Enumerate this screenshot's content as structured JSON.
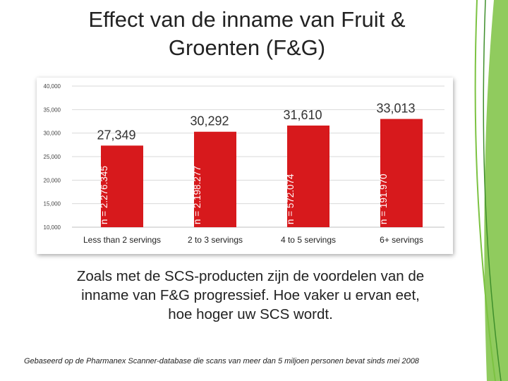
{
  "slide": {
    "title_line1": "Effect van de inname van Fruit &",
    "title_line2": "Groenten (F&G)",
    "caption_line1": "Zoals met de SCS-producten zijn de voordelen van de",
    "caption_line2": "inname van F&G progressief.  Hoe vaker u ervan eet,",
    "caption_line3": "hoe hoger uw SCS wordt.",
    "footnote": "Gebaseerd op de Pharmanex Scanner-database die scans van meer dan 5 miljoen personen bevat sinds mei 2008"
  },
  "colors": {
    "bar": "#d7191c",
    "grid": "#d9d9d9",
    "accent_green": "#7cc242",
    "accent_green_dark": "#3f8f2c"
  },
  "chart_data": {
    "type": "bar",
    "categories": [
      "Less than 2 servings",
      "2 to 3 servings",
      "4 to 5 servings",
      "6+ servings"
    ],
    "values": [
      27349,
      30292,
      31610,
      33013
    ],
    "value_labels": [
      "27,349",
      "30,292",
      "31,610",
      "33,013"
    ],
    "bar_annotations": [
      "n = 2.276.345",
      "n = 2.198.277",
      "n = 572.074",
      "n = 191.970"
    ],
    "ylim": [
      10000,
      40000
    ],
    "yticks": [
      10000,
      15000,
      20000,
      25000,
      30000,
      35000,
      40000
    ],
    "ytick_labels": [
      "10,000",
      "15,000",
      "20,000",
      "25,000",
      "30,000",
      "35,000",
      "40,000"
    ],
    "grid": true,
    "title": "",
    "xlabel": "",
    "ylabel": ""
  }
}
